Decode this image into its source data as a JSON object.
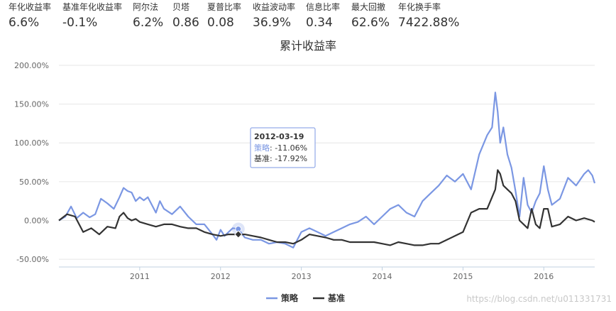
{
  "metrics": [
    {
      "label": "年化收益率",
      "value": "6.6%"
    },
    {
      "label": "基准年化收益率",
      "value": "-0.1%"
    },
    {
      "label": "阿尔法",
      "value": "6.2%"
    },
    {
      "label": "贝塔",
      "value": "0.86"
    },
    {
      "label": "夏普比率",
      "value": "0.08"
    },
    {
      "label": "收益波动率",
      "value": "36.9%"
    },
    {
      "label": "信息比率",
      "value": "0.34"
    },
    {
      "label": "最大回撤",
      "value": "62.6%"
    },
    {
      "label": "年化换手率",
      "value": "7422.88%"
    }
  ],
  "watermark": "https://blog.csdn.net/u011331731",
  "chart_data": {
    "type": "line",
    "title": "累计收益率",
    "xlabel": "",
    "ylabel": "",
    "x_ticks": [
      "2011",
      "2012",
      "2013",
      "2014",
      "2015",
      "2016"
    ],
    "y_ticks": [
      "-50.00%",
      "0.00%",
      "50.00%",
      "100.00%",
      "150.00%",
      "200.00%"
    ],
    "ylim": [
      -60,
      200
    ],
    "xlim": [
      2010.0,
      2016.63
    ],
    "grid": true,
    "legend_position": "bottom-center",
    "colors": {
      "strategy": "#7b97e3",
      "benchmark": "#333333",
      "axis": "#c0d0e0",
      "grid": "#e6e6e6",
      "tick_text": "#666666"
    },
    "series": [
      {
        "name": "策略",
        "color": "#7b97e3",
        "x": [
          2010.0,
          2010.08,
          2010.15,
          2010.22,
          2010.3,
          2010.38,
          2010.45,
          2010.52,
          2010.6,
          2010.68,
          2010.75,
          2010.8,
          2010.85,
          2010.9,
          2010.95,
          2011.0,
          2011.05,
          2011.1,
          2011.2,
          2011.25,
          2011.3,
          2011.4,
          2011.5,
          2011.6,
          2011.7,
          2011.8,
          2011.9,
          2011.95,
          2012.0,
          2012.05,
          2012.1,
          2012.15,
          2012.22,
          2012.3,
          2012.4,
          2012.5,
          2012.6,
          2012.7,
          2012.8,
          2012.9,
          2012.95,
          2013.0,
          2013.1,
          2013.2,
          2013.3,
          2013.4,
          2013.5,
          2013.6,
          2013.7,
          2013.8,
          2013.9,
          2014.0,
          2014.1,
          2014.2,
          2014.3,
          2014.4,
          2014.5,
          2014.6,
          2014.7,
          2014.8,
          2014.9,
          2015.0,
          2015.1,
          2015.2,
          2015.3,
          2015.36,
          2015.4,
          2015.43,
          2015.46,
          2015.5,
          2015.55,
          2015.6,
          2015.65,
          2015.7,
          2015.75,
          2015.8,
          2015.85,
          2015.9,
          2015.95,
          2016.0,
          2016.05,
          2016.1,
          2016.2,
          2016.3,
          2016.4,
          2016.5,
          2016.55,
          2016.6,
          2016.63
        ],
        "values": [
          0,
          5,
          18,
          3,
          10,
          4,
          8,
          28,
          22,
          15,
          30,
          42,
          38,
          36,
          25,
          30,
          26,
          30,
          10,
          25,
          15,
          8,
          18,
          5,
          -5,
          -5,
          -18,
          -25,
          -12,
          -20,
          -15,
          -10,
          -11,
          -22,
          -25,
          -25,
          -30,
          -28,
          -30,
          -35,
          -25,
          -15,
          -10,
          -15,
          -20,
          -15,
          -10,
          -5,
          -2,
          5,
          -5,
          5,
          15,
          20,
          10,
          5,
          25,
          35,
          45,
          58,
          50,
          60,
          40,
          85,
          110,
          120,
          165,
          140,
          100,
          120,
          85,
          68,
          38,
          5,
          55,
          20,
          10,
          25,
          35,
          70,
          40,
          20,
          28,
          55,
          45,
          60,
          65,
          58,
          48
        ]
      },
      {
        "name": "基准",
        "color": "#333333",
        "x": [
          2010.0,
          2010.1,
          2010.2,
          2010.3,
          2010.4,
          2010.5,
          2010.6,
          2010.7,
          2010.75,
          2010.8,
          2010.85,
          2010.9,
          2010.95,
          2011.0,
          2011.1,
          2011.2,
          2011.3,
          2011.4,
          2011.5,
          2011.6,
          2011.7,
          2011.8,
          2011.9,
          2012.0,
          2012.1,
          2012.22,
          2012.3,
          2012.4,
          2012.5,
          2012.6,
          2012.7,
          2012.8,
          2012.9,
          2013.0,
          2013.1,
          2013.2,
          2013.3,
          2013.4,
          2013.5,
          2013.6,
          2013.7,
          2013.8,
          2013.9,
          2014.0,
          2014.1,
          2014.2,
          2014.3,
          2014.4,
          2014.5,
          2014.6,
          2014.7,
          2014.8,
          2014.9,
          2015.0,
          2015.1,
          2015.2,
          2015.3,
          2015.4,
          2015.43,
          2015.46,
          2015.5,
          2015.55,
          2015.6,
          2015.65,
          2015.7,
          2015.75,
          2015.8,
          2015.85,
          2015.9,
          2015.95,
          2016.0,
          2016.05,
          2016.1,
          2016.2,
          2016.3,
          2016.4,
          2016.5,
          2016.6,
          2016.63
        ],
        "values": [
          0,
          8,
          5,
          -15,
          -10,
          -18,
          -8,
          -10,
          5,
          10,
          3,
          0,
          2,
          -2,
          -5,
          -8,
          -5,
          -5,
          -8,
          -10,
          -10,
          -15,
          -18,
          -20,
          -18,
          -18,
          -18,
          -20,
          -22,
          -25,
          -28,
          -28,
          -30,
          -25,
          -18,
          -20,
          -22,
          -25,
          -25,
          -28,
          -28,
          -28,
          -28,
          -30,
          -32,
          -28,
          -30,
          -32,
          -32,
          -30,
          -30,
          -25,
          -20,
          -15,
          10,
          15,
          15,
          40,
          65,
          60,
          45,
          40,
          35,
          25,
          0,
          -5,
          -10,
          15,
          -5,
          -10,
          15,
          15,
          -8,
          -5,
          5,
          0,
          3,
          0,
          -2
        ]
      }
    ],
    "tooltip": {
      "date": "2012-03-19",
      "x": 2012.22,
      "rows": [
        {
          "series": "策略",
          "value": "-11.06%"
        },
        {
          "series": "基准",
          "value": "-17.92%"
        }
      ]
    }
  }
}
